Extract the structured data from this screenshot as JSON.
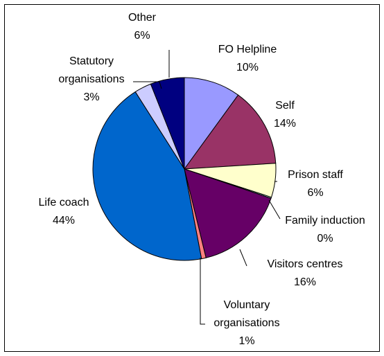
{
  "chart_data": {
    "type": "pie",
    "title": "",
    "slices": [
      {
        "name": "FO Helpline",
        "pct_label": "10%",
        "value": 10,
        "color": "#9999ff"
      },
      {
        "name": "Self",
        "pct_label": "14%",
        "value": 14,
        "color": "#993366"
      },
      {
        "name": "Prison staff",
        "pct_label": "6%",
        "value": 6,
        "color": "#ffffcc"
      },
      {
        "name": "Family induction",
        "pct_label": "0%",
        "value": 0.2,
        "color": "#ccffff"
      },
      {
        "name": "Visitors centres",
        "pct_label": "16%",
        "value": 16,
        "color": "#660066"
      },
      {
        "name": "Voluntary organisations",
        "pct_label": "1%",
        "value": 0.8,
        "color": "#ff8080"
      },
      {
        "name": "Life coach",
        "pct_label": "44%",
        "value": 44,
        "color": "#0066cc"
      },
      {
        "name": "Statutory organisations",
        "pct_label": "3%",
        "value": 3,
        "color": "#ccccff"
      },
      {
        "name": "Other",
        "pct_label": "6%",
        "value": 6,
        "color": "#000080"
      }
    ]
  }
}
